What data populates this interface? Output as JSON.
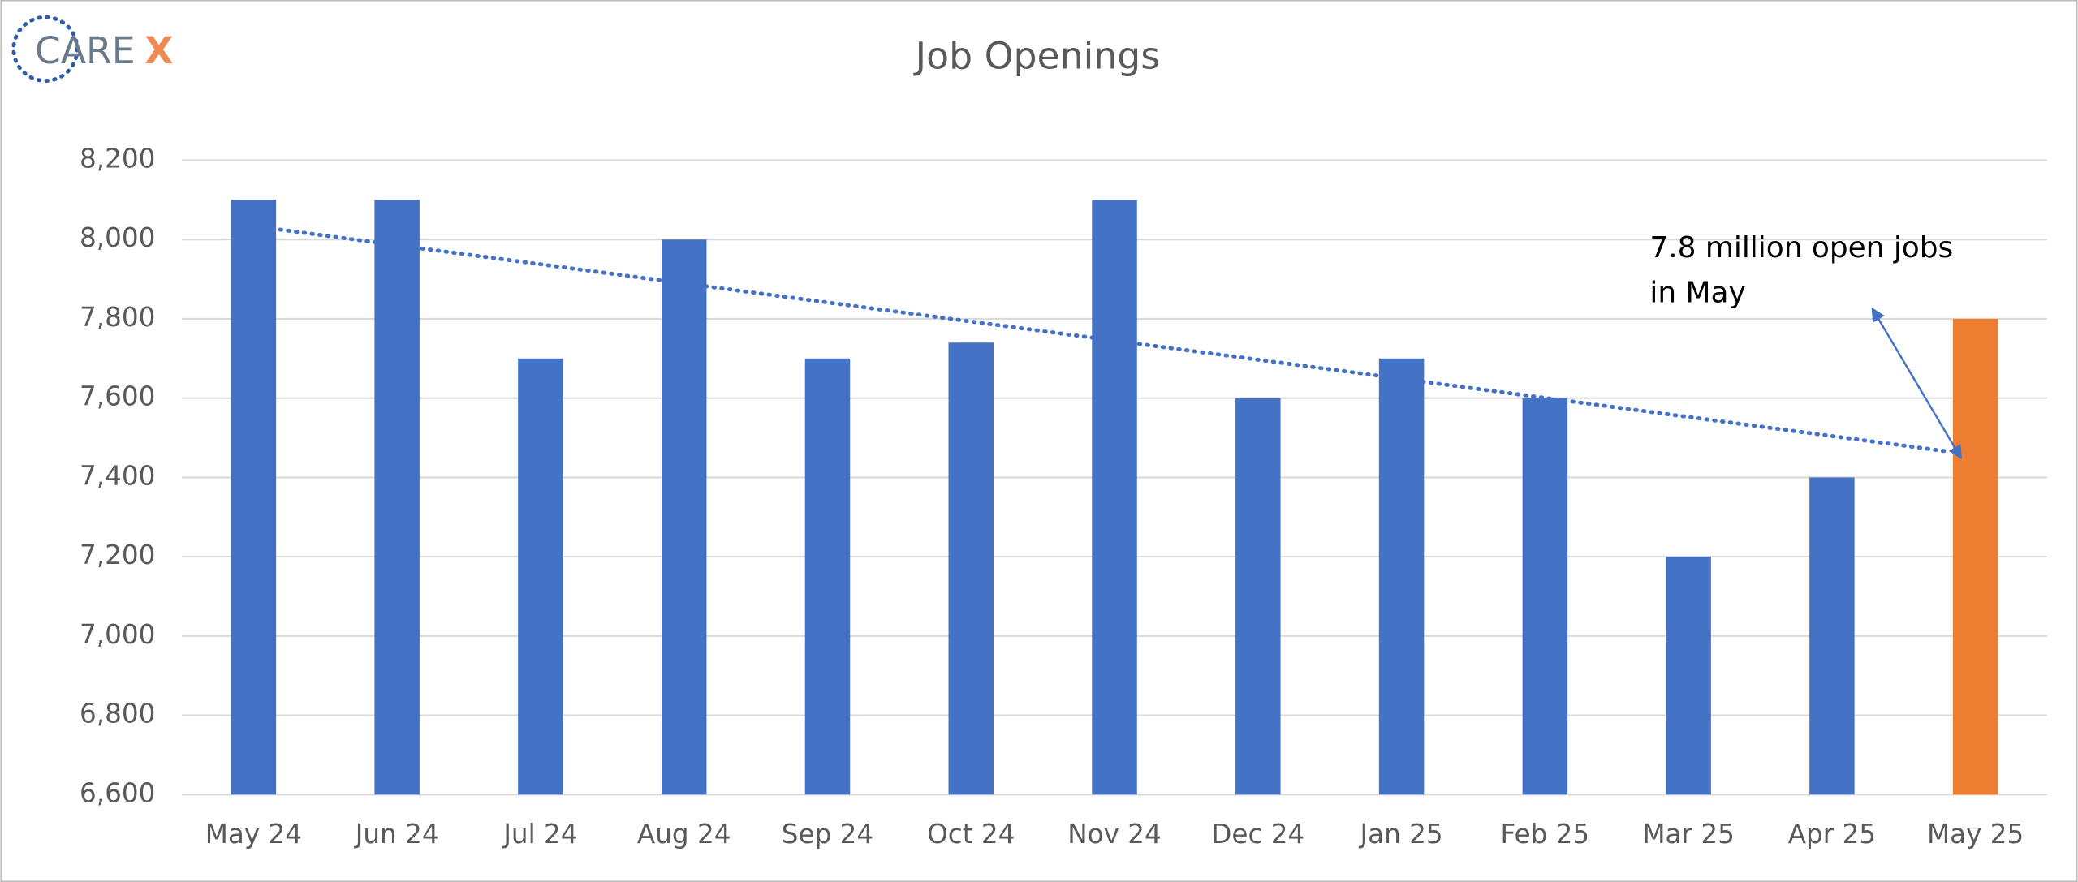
{
  "chart_data": {
    "type": "bar",
    "title": "Job Openings",
    "logo": [
      "CARE",
      "X"
    ],
    "categories": [
      "May 24",
      "Jun 24",
      "Jul 24",
      "Aug 24",
      "Sep 24",
      "Oct 24",
      "Nov 24",
      "Dec 24",
      "Jan 25",
      "Feb 25",
      "Mar 25",
      "Apr 25",
      "May 25"
    ],
    "values": [
      8100,
      8100,
      7700,
      8000,
      7700,
      7740,
      8100,
      7600,
      7700,
      7600,
      7200,
      7400,
      7800
    ],
    "colors": [
      "#4472c4",
      "#4472c4",
      "#4472c4",
      "#4472c4",
      "#4472c4",
      "#4472c4",
      "#4472c4",
      "#4472c4",
      "#4472c4",
      "#4472c4",
      "#4472c4",
      "#4472c4",
      "#ed7d31"
    ],
    "trendline": [
      8025,
      7465
    ],
    "annotation": [
      "7.8 million open jobs",
      "in May"
    ],
    "ylim": [
      6600,
      8200
    ],
    "yticks": [
      {
        "value": 6600,
        "label": "6,600"
      },
      {
        "value": 6800,
        "label": "6,800"
      },
      {
        "value": 7000,
        "label": "7,000"
      },
      {
        "value": 7200,
        "label": "7,200"
      },
      {
        "value": 7400,
        "label": "7,400"
      },
      {
        "value": 7600,
        "label": "7,600"
      },
      {
        "value": 7800,
        "label": "7,800"
      },
      {
        "value": 8000,
        "label": "8,000"
      },
      {
        "value": 8200,
        "label": "8,200"
      }
    ],
    "grid": true
  }
}
